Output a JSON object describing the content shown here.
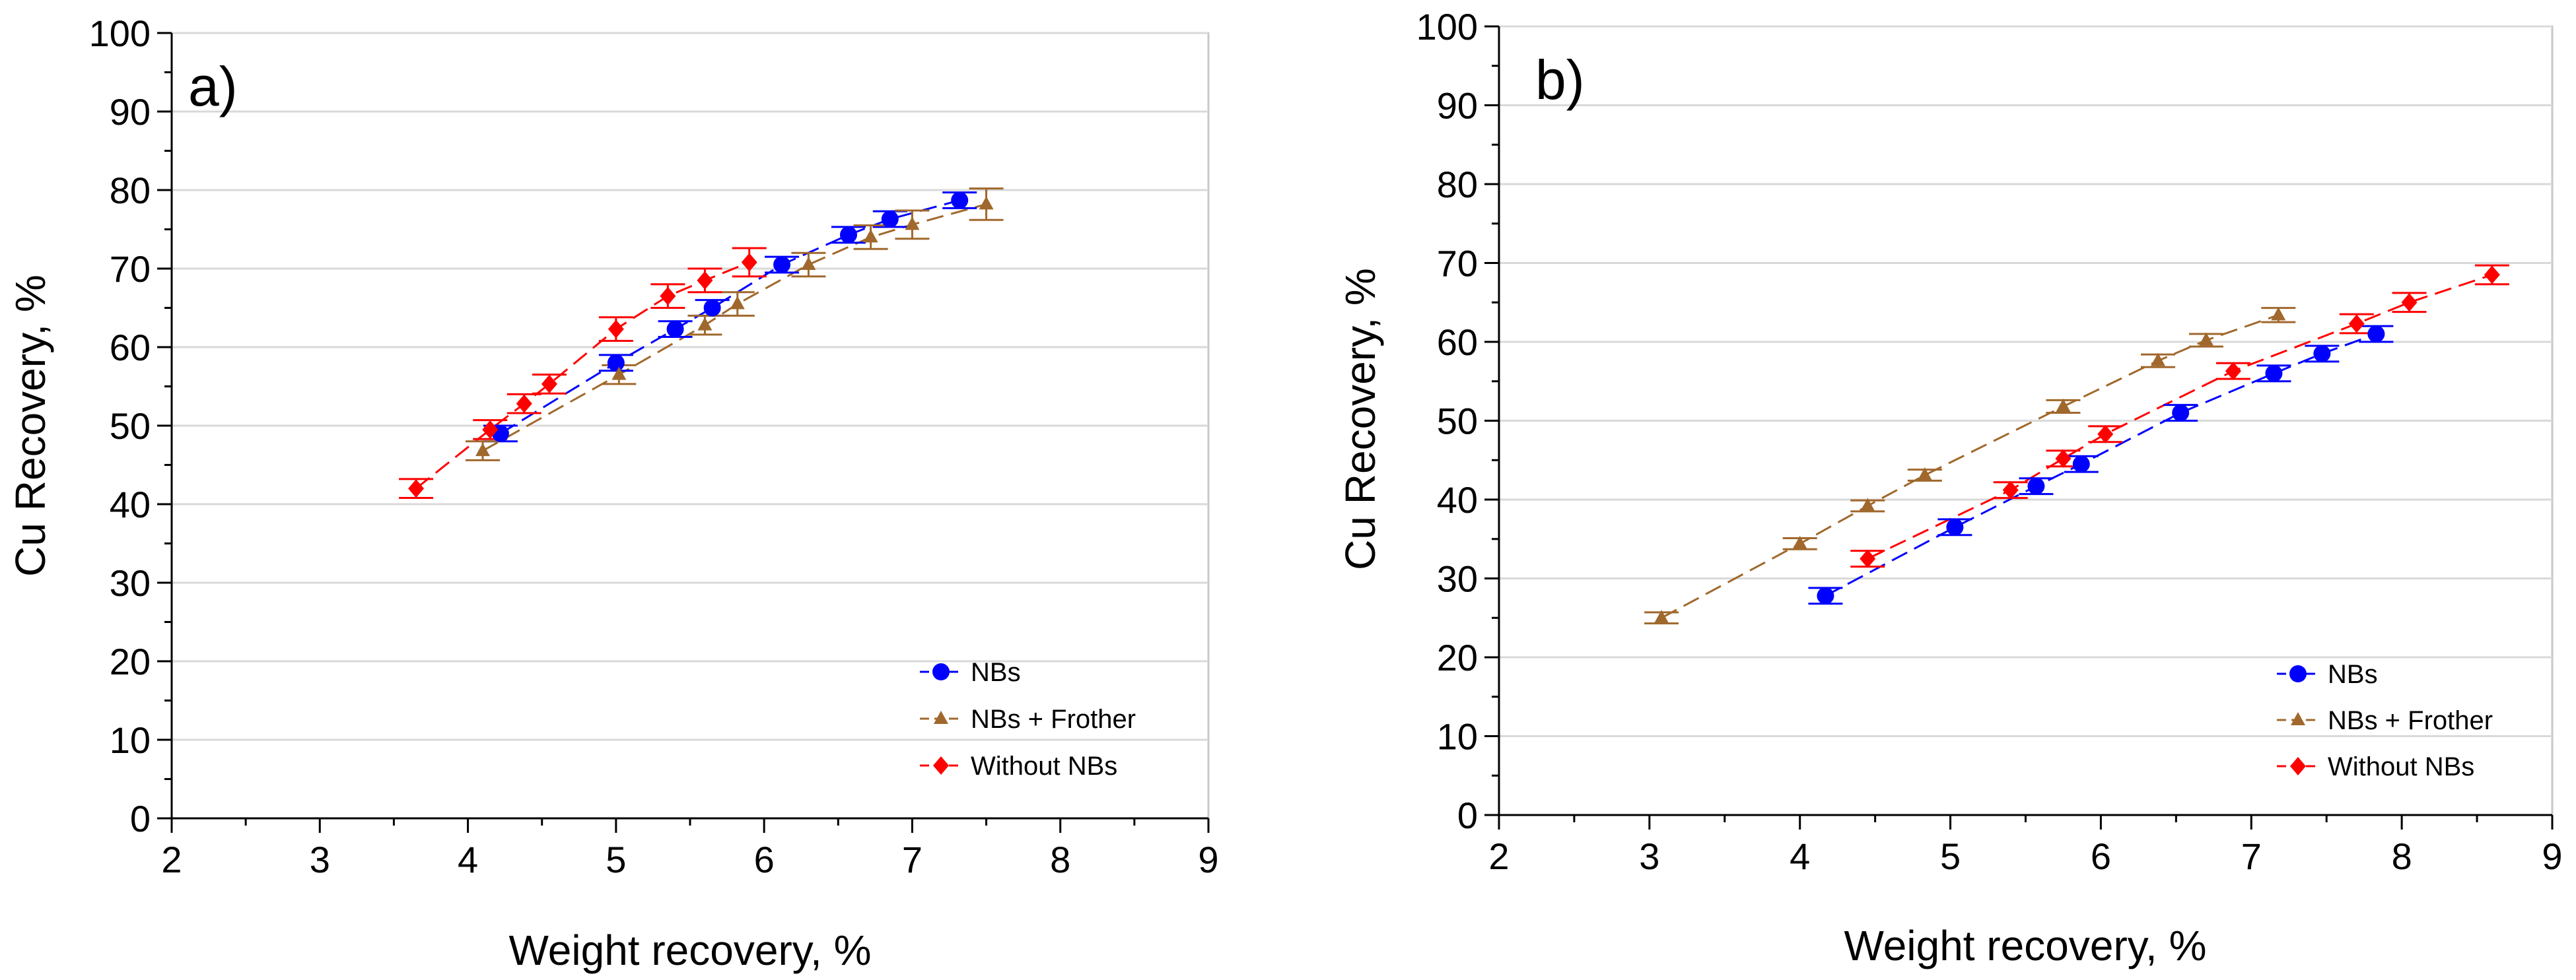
{
  "chart_data": [
    {
      "type": "scatter",
      "panel_label": "a)",
      "xlabel": "Weight recovery, %",
      "ylabel": "Cu Recovery, %",
      "xlim": [
        2,
        9
      ],
      "ylim": [
        0,
        100
      ],
      "x_ticks": [
        "2",
        "3",
        "4",
        "5",
        "6",
        "7",
        "8",
        "9"
      ],
      "y_ticks": [
        "0",
        "10",
        "20",
        "30",
        "40",
        "50",
        "60",
        "70",
        "80",
        "90",
        "100"
      ],
      "grid": "horizontal",
      "legend_position": "bottom-right",
      "series": [
        {
          "name": "NBs",
          "color": "#0000ff",
          "marker": "circle",
          "x": [
            4.22,
            5.0,
            5.4,
            5.65,
            6.12,
            6.57,
            6.85,
            7.32
          ],
          "y": [
            49.0,
            58.0,
            62.3,
            65.0,
            70.5,
            74.3,
            76.3,
            78.7
          ],
          "err": [
            1.0,
            1.0,
            1.0,
            1.0,
            1.0,
            1.0,
            1.0,
            1.0
          ]
        },
        {
          "name": "NBs + Frother",
          "color": "#a0682c",
          "marker": "triangle",
          "x": [
            4.1,
            5.02,
            5.6,
            5.82,
            6.3,
            6.72,
            7.0,
            7.5
          ],
          "y": [
            46.8,
            56.5,
            62.8,
            65.5,
            70.5,
            74.0,
            75.6,
            78.2
          ],
          "err": [
            1.2,
            1.2,
            1.2,
            1.5,
            1.5,
            1.5,
            1.8,
            2.0
          ]
        },
        {
          "name": "Without NBs",
          "color": "#ff0000",
          "marker": "diamond",
          "x": [
            3.65,
            4.15,
            4.38,
            4.55,
            5.0,
            5.35,
            5.6,
            5.9
          ],
          "y": [
            42.0,
            49.5,
            52.8,
            55.3,
            62.3,
            66.5,
            68.5,
            70.8
          ],
          "err": [
            1.2,
            1.2,
            1.2,
            1.2,
            1.5,
            1.5,
            1.5,
            1.8
          ]
        }
      ]
    },
    {
      "type": "scatter",
      "panel_label": "b)",
      "xlabel": "Weight recovery, %",
      "ylabel": "Cu Recovery, %",
      "xlim": [
        2,
        9
      ],
      "ylim": [
        0,
        100
      ],
      "x_ticks": [
        "2",
        "3",
        "4",
        "5",
        "6",
        "7",
        "8",
        "9"
      ],
      "y_ticks": [
        "0",
        "10",
        "20",
        "30",
        "40",
        "50",
        "60",
        "70",
        "80",
        "90",
        "100"
      ],
      "grid": "horizontal",
      "legend_position": "bottom-right",
      "series": [
        {
          "name": "NBs",
          "color": "#0000ff",
          "marker": "circle",
          "x": [
            4.17,
            5.03,
            5.57,
            5.87,
            6.53,
            7.15,
            7.47,
            7.83
          ],
          "y": [
            27.8,
            36.5,
            41.7,
            44.5,
            51.0,
            56.0,
            58.5,
            61.0
          ],
          "err": [
            1.0,
            1.0,
            1.0,
            1.0,
            1.0,
            1.0,
            1.0,
            1.0
          ]
        },
        {
          "name": "NBs + Frother",
          "color": "#a0682c",
          "marker": "triangle",
          "x": [
            3.08,
            4.0,
            4.45,
            4.83,
            5.75,
            6.38,
            6.7,
            7.18
          ],
          "y": [
            25.0,
            34.4,
            39.2,
            43.1,
            51.8,
            57.6,
            60.2,
            63.4
          ],
          "err": [
            0.7,
            0.7,
            0.7,
            0.7,
            0.8,
            0.8,
            0.8,
            0.9
          ]
        },
        {
          "name": "Without NBs",
          "color": "#ff0000",
          "marker": "diamond",
          "x": [
            4.45,
            5.4,
            5.75,
            6.03,
            6.88,
            7.7,
            8.05,
            8.6
          ],
          "y": [
            32.5,
            41.2,
            45.2,
            48.3,
            56.3,
            62.3,
            65.0,
            68.5
          ],
          "err": [
            1.0,
            1.0,
            1.0,
            1.0,
            1.0,
            1.2,
            1.2,
            1.2
          ]
        }
      ]
    }
  ]
}
